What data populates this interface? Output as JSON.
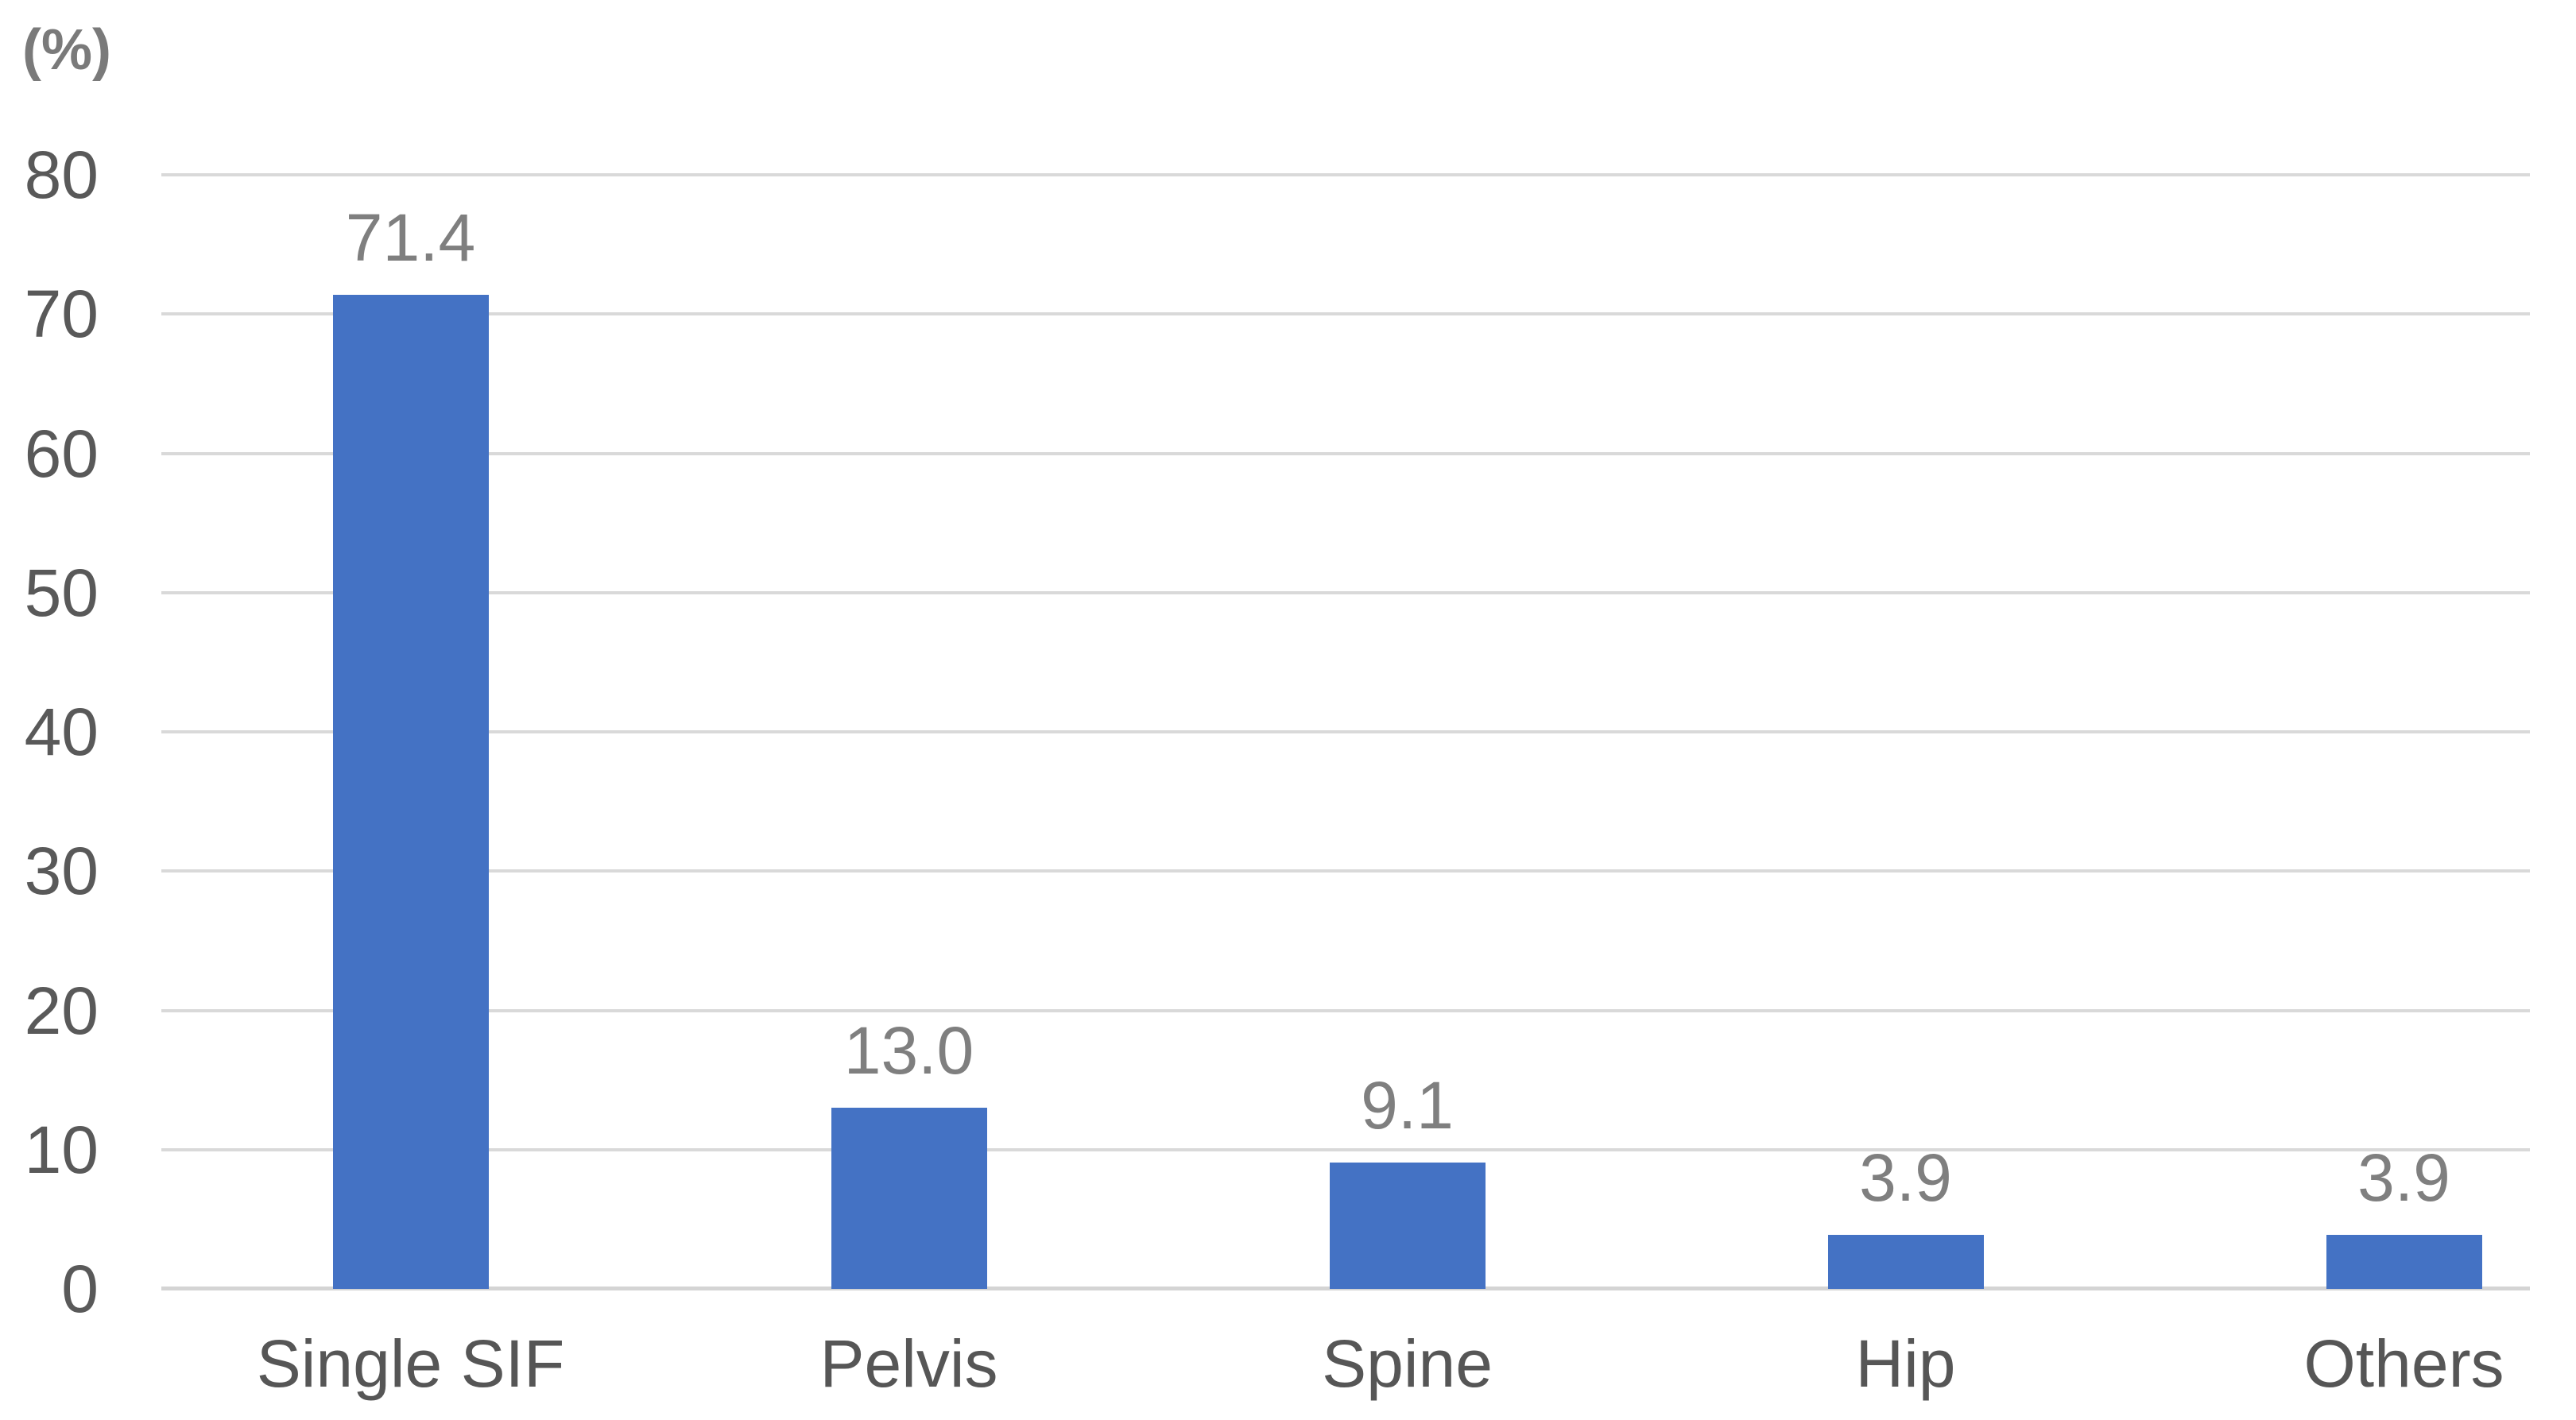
{
  "chart_data": {
    "type": "bar",
    "title": "",
    "xlabel": "",
    "ylabel": "(%)",
    "categories": [
      "Single SIF",
      "Pelvis",
      "Spine",
      "Hip",
      "Others"
    ],
    "values": [
      71.4,
      13.0,
      9.1,
      3.9,
      3.9
    ],
    "value_labels": [
      "71.4",
      "13.0",
      "9.1",
      "3.9",
      "3.9"
    ],
    "ylim": [
      0,
      80
    ],
    "y_ticks": [
      0,
      10,
      20,
      30,
      40,
      50,
      60,
      70,
      80
    ],
    "grid": true,
    "legend": false,
    "colors": {
      "bar": "#4472C4",
      "gridline": "#D9D9D9",
      "axis_line": "#D4D4D4",
      "tick_label": "#595959",
      "category_label": "#565656",
      "value_label": "#7F7F7F",
      "ylabel": "#7A7A7A",
      "background": "#FFFFFF"
    }
  }
}
